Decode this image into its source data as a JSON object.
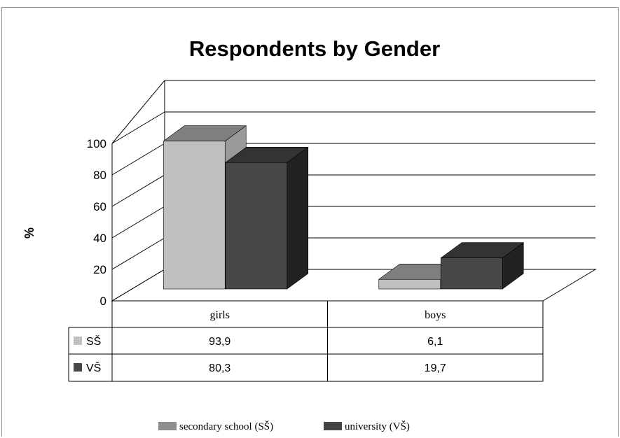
{
  "chart_data": {
    "type": "bar",
    "title": "Respondents by Gender",
    "ylabel": "%",
    "ylim": [
      0,
      100
    ],
    "yticks": [
      0,
      20,
      40,
      60,
      80,
      100
    ],
    "categories": [
      "girls",
      "boys"
    ],
    "series": [
      {
        "name": "SŠ",
        "legend": "secondary school (SŠ)",
        "values": [
          93.9,
          6.1
        ],
        "labels": [
          "93,9",
          "6,1"
        ],
        "color": "#c0c0c0"
      },
      {
        "name": "VŠ",
        "legend": "university (VŠ)",
        "values": [
          80.3,
          19.7
        ],
        "labels": [
          "80,3",
          "19,7"
        ],
        "color": "#484848"
      }
    ],
    "legend_position": "bottom",
    "grid": true
  }
}
